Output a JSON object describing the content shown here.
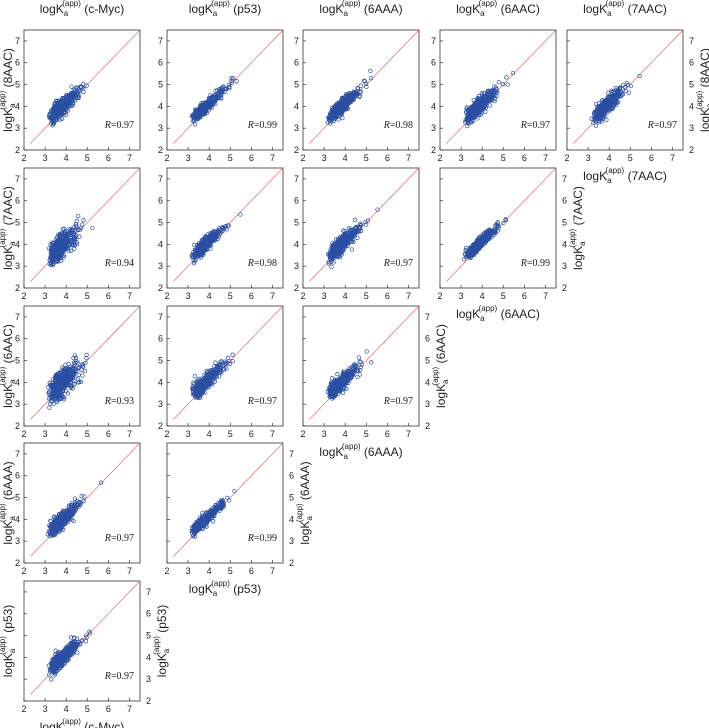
{
  "theme": {
    "point_color": "#2b4fa3",
    "diagonal_color": "#e06a6a",
    "axis_color": "#333333"
  },
  "columns": [
    "c-Myc",
    "p53",
    "6AAA",
    "6AAC",
    "7AAC"
  ],
  "rows": [
    "8AAC",
    "7AAC",
    "6AAC",
    "6AAA",
    "p53"
  ],
  "axis_label_prefix": "logK",
  "axis_label_sub": "a",
  "axis_label_sup": "(app)",
  "chart_data": {
    "type": "scatter",
    "layout": "lower-triangular scatter matrix",
    "xlim": [
      2,
      7.5
    ],
    "ylim": [
      2,
      7.5
    ],
    "ticks": [
      2,
      3,
      4,
      5,
      6,
      7
    ],
    "reference_line": "y = x",
    "panels": [
      {
        "row": "8AAC",
        "col": "c-Myc",
        "r": "0.97"
      },
      {
        "row": "8AAC",
        "col": "p53",
        "r": "0.99"
      },
      {
        "row": "8AAC",
        "col": "6AAA",
        "r": "0.98"
      },
      {
        "row": "8AAC",
        "col": "6AAC",
        "r": "0.97"
      },
      {
        "row": "8AAC",
        "col": "7AAC",
        "r": "0.97"
      },
      {
        "row": "7AAC",
        "col": "c-Myc",
        "r": "0.94"
      },
      {
        "row": "7AAC",
        "col": "p53",
        "r": "0.98"
      },
      {
        "row": "7AAC",
        "col": "6AAA",
        "r": "0.97"
      },
      {
        "row": "7AAC",
        "col": "6AAC",
        "r": "0.99"
      },
      {
        "row": "6AAC",
        "col": "c-Myc",
        "r": "0.93"
      },
      {
        "row": "6AAC",
        "col": "p53",
        "r": "0.97"
      },
      {
        "row": "6AAC",
        "col": "6AAA",
        "r": "0.97"
      },
      {
        "row": "6AAA",
        "col": "c-Myc",
        "r": "0.97"
      },
      {
        "row": "6AAA",
        "col": "p53",
        "r": "0.99"
      },
      {
        "row": "p53",
        "col": "c-Myc",
        "r": "0.97"
      }
    ]
  }
}
